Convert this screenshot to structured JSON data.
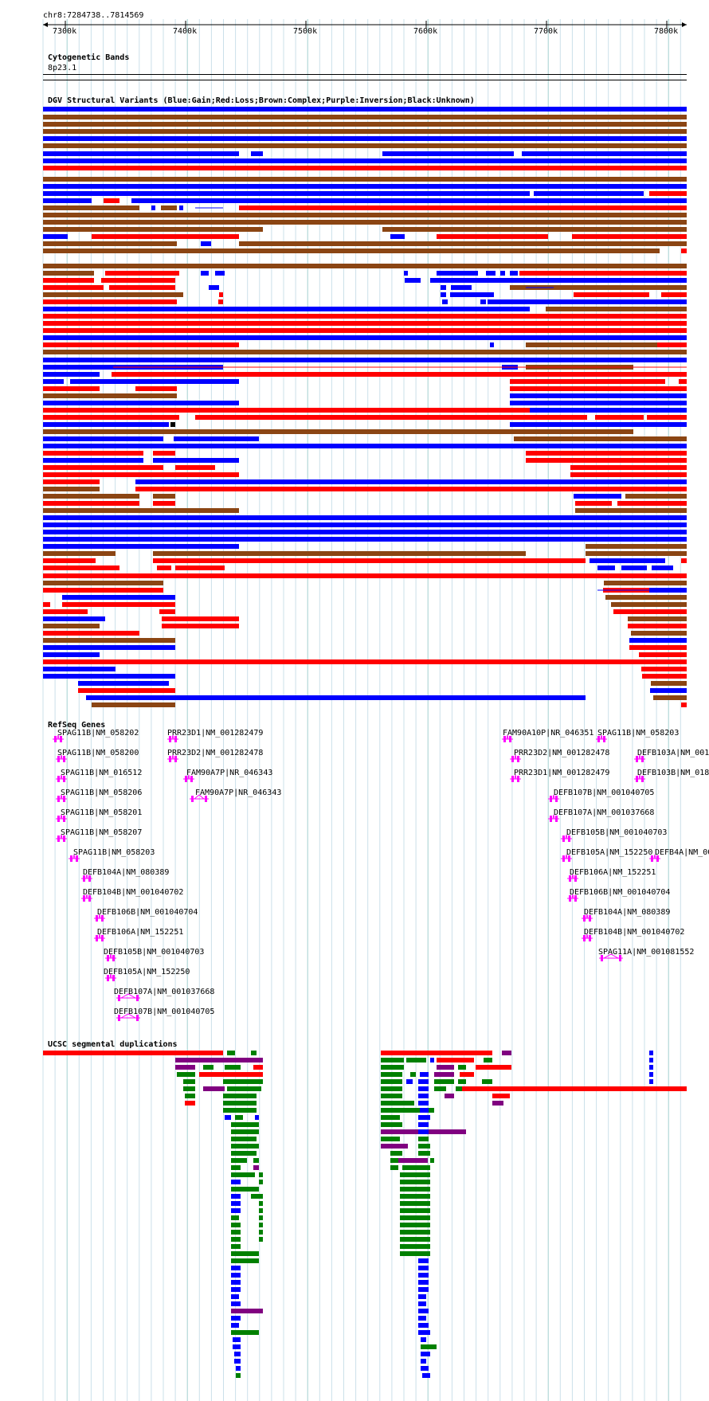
{
  "browser": {
    "position": "chr8:7284738..7814569",
    "ruler_ticks": [
      "7300k",
      "7400k",
      "7500k",
      "7600k",
      "7700k",
      "7800k"
    ]
  },
  "tracks": {
    "cytobands": {
      "title": "Cytogenetic Bands",
      "band": "8p23.1"
    },
    "dgv": {
      "title": "DGV Structural Variants (Blue:Gain;Red:Loss;Brown:Complex;Purple:Inversion;Black:Unknown)"
    },
    "refseq": {
      "title": "RefSeq Genes",
      "genes": [
        "SPAG11B|NM_058202",
        "SPAG11B|NM_058200",
        "SPAG11B|NM_016512",
        "SPAG11B|NM_058206",
        "SPAG11B|NM_058201",
        "SPAG11B|NM_058207",
        "SPAG11B|NM_058203",
        "DEFB104A|NM_080389",
        "DEFB104B|NM_001040702",
        "DEFB106B|NM_001040704",
        "DEFB106A|NM_152251",
        "DEFB105B|NM_001040703",
        "DEFB105A|NM_152250",
        "DEFB107A|NM_001037668",
        "DEFB107B|NM_001040705",
        "PRR23D1|NM_001282479",
        "PRR23D2|NM_001282478",
        "FAM90A7P|NR_046343",
        "FAM90A7P|NR_046343",
        "FAM90A10P|NR_046351",
        "SPAG11B|NM_058203",
        "PRR23D2|NM_001282478",
        "DEFB103A|NM_001",
        "PRR23D1|NM_001282479",
        "DEFB103B|NM_018",
        "DEFB107B|NM_001040705",
        "DEFB107A|NM_001037668",
        "DEFB105B|NM_001040703",
        "DEFB105A|NM_152250",
        "DEFB4A|NM_00",
        "DEFB106A|NM_152251",
        "DEFB106B|NM_001040704",
        "DEFB104A|NM_080389",
        "DEFB104B|NM_001040702",
        "SPAG11A|NM_001081552"
      ]
    },
    "segdups": {
      "title": "UCSC segmental duplications"
    }
  },
  "colors": {
    "gain": "#0000ff",
    "loss": "#ff0000",
    "complex": "#8b4513",
    "inversion": "#800080",
    "gene": "#ff00ff",
    "segdup_green": "#008000",
    "gridline": "#aaccdd"
  }
}
